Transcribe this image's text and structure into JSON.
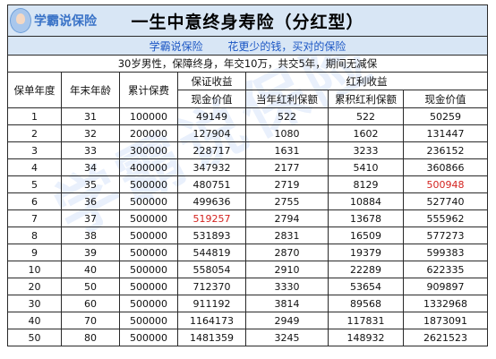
{
  "logo": {
    "text": "学霸说保险"
  },
  "title": "一生中意终身寿险（分红型）",
  "slogan": {
    "brand": "学霸说保险",
    "motto": "花更少的钱，买对的保险"
  },
  "description": "30岁男性，保障终身，年交10万，共交5年，期间无减保",
  "watermark": "学霸说保险",
  "headers": {
    "policy_year": "保单年度",
    "age": "年末年龄",
    "premium": "累计保费",
    "guaranteed_group": "保证收益",
    "dividend_group": "红利收益",
    "cash_value": "现金价值",
    "annual_bonus": "当年红利保额",
    "cumulative_bonus": "累积红利保额",
    "total_cash_value": "现金价值"
  },
  "rows": [
    {
      "year": "1",
      "age": "31",
      "premium": "100000",
      "cash": "49149",
      "annual": "522",
      "cumulative": "522",
      "total": "50259"
    },
    {
      "year": "2",
      "age": "32",
      "premium": "200000",
      "cash": "127904",
      "annual": "1080",
      "cumulative": "1602",
      "total": "131447"
    },
    {
      "year": "3",
      "age": "33",
      "premium": "300000",
      "cash": "228717",
      "annual": "1631",
      "cumulative": "3233",
      "total": "236152"
    },
    {
      "year": "4",
      "age": "34",
      "premium": "400000",
      "cash": "347932",
      "annual": "2177",
      "cumulative": "5410",
      "total": "360866"
    },
    {
      "year": "5",
      "age": "35",
      "premium": "500000",
      "cash": "480751",
      "annual": "2719",
      "cumulative": "8129",
      "total": "500948",
      "highlight": "total"
    },
    {
      "year": "6",
      "age": "36",
      "premium": "500000",
      "cash": "499636",
      "annual": "2755",
      "cumulative": "10884",
      "total": "527740"
    },
    {
      "year": "7",
      "age": "37",
      "premium": "500000",
      "cash": "519257",
      "annual": "2794",
      "cumulative": "13678",
      "total": "555962",
      "highlight": "cash"
    },
    {
      "year": "8",
      "age": "38",
      "premium": "500000",
      "cash": "531893",
      "annual": "2831",
      "cumulative": "16509",
      "total": "577273"
    },
    {
      "year": "9",
      "age": "39",
      "premium": "500000",
      "cash": "544819",
      "annual": "2870",
      "cumulative": "19379",
      "total": "599383"
    },
    {
      "year": "10",
      "age": "40",
      "premium": "500000",
      "cash": "558054",
      "annual": "2910",
      "cumulative": "22289",
      "total": "622335"
    },
    {
      "year": "20",
      "age": "50",
      "premium": "500000",
      "cash": "712370",
      "annual": "3330",
      "cumulative": "53654",
      "total": "909897"
    },
    {
      "year": "30",
      "age": "60",
      "premium": "500000",
      "cash": "911192",
      "annual": "3814",
      "cumulative": "89568",
      "total": "1332968"
    },
    {
      "year": "40",
      "age": "70",
      "premium": "500000",
      "cash": "1164173",
      "annual": "2949",
      "cumulative": "117831",
      "total": "1873091"
    },
    {
      "year": "50",
      "age": "80",
      "premium": "500000",
      "cash": "1481359",
      "annual": "3245",
      "cumulative": "148932",
      "total": "2621523"
    }
  ],
  "colors": {
    "header_bg": "#d8e6f5",
    "slogan_text": "#1b56c4",
    "highlight": "#d4231f"
  }
}
